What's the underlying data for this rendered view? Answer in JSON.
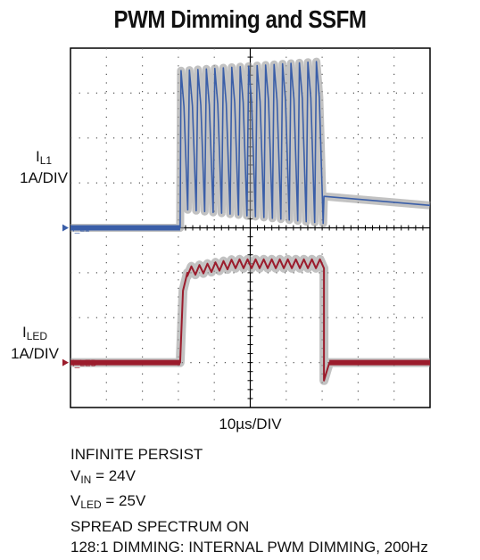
{
  "title": "PWM Dimming and SSFM",
  "channels": {
    "il1": {
      "label_main": "I",
      "label_sub": "L1",
      "scale": "1A/DIV",
      "marker": "I_L1",
      "color": "#3a5ea8"
    },
    "iled": {
      "label_main": "I",
      "label_sub": "LED",
      "scale": "1A/DIV",
      "marker": "I_LED",
      "color": "#9b1c2c"
    }
  },
  "time_scale": "10µs/DIV",
  "notes": {
    "persist": "INFINITE PERSIST",
    "vin_main": "V",
    "vin_sub": "IN",
    "vin_value": " = 24V",
    "vled_main": "V",
    "vled_sub": "LED",
    "vled_value": " = 25V",
    "spread": "SPREAD SPECTRUM ON",
    "dimming": "128:1 DIMMING: INTERNAL PWM DIMMING, 200Hz"
  },
  "chart_data": {
    "type": "line",
    "title": "PWM Dimming and SSFM",
    "xlabel": "10µs/DIV",
    "xlim": [
      0,
      100
    ],
    "grid": true,
    "divisions": {
      "x": 10,
      "y": 8
    },
    "series": [
      {
        "name": "I_L1",
        "scale": "1A/DIV",
        "pwm_on_us": [
          30.5,
          70.5
        ],
        "off_level_A": 0.0,
        "after_off_level_A": [
          0.7,
          0.5
        ],
        "switching_peak_A": [
          3.5,
          3.7
        ],
        "switching_valley_A": [
          0.4,
          0.1
        ],
        "switching_cycles": 17
      },
      {
        "name": "I_LED",
        "scale": "1A/DIV",
        "pwm_on_us": [
          30.5,
          70.5
        ],
        "off_level_A": 0.0,
        "on_level_A": [
          2.0,
          2.2
        ],
        "ripple_A": 0.1,
        "ripple_cycles": 17
      }
    ]
  }
}
